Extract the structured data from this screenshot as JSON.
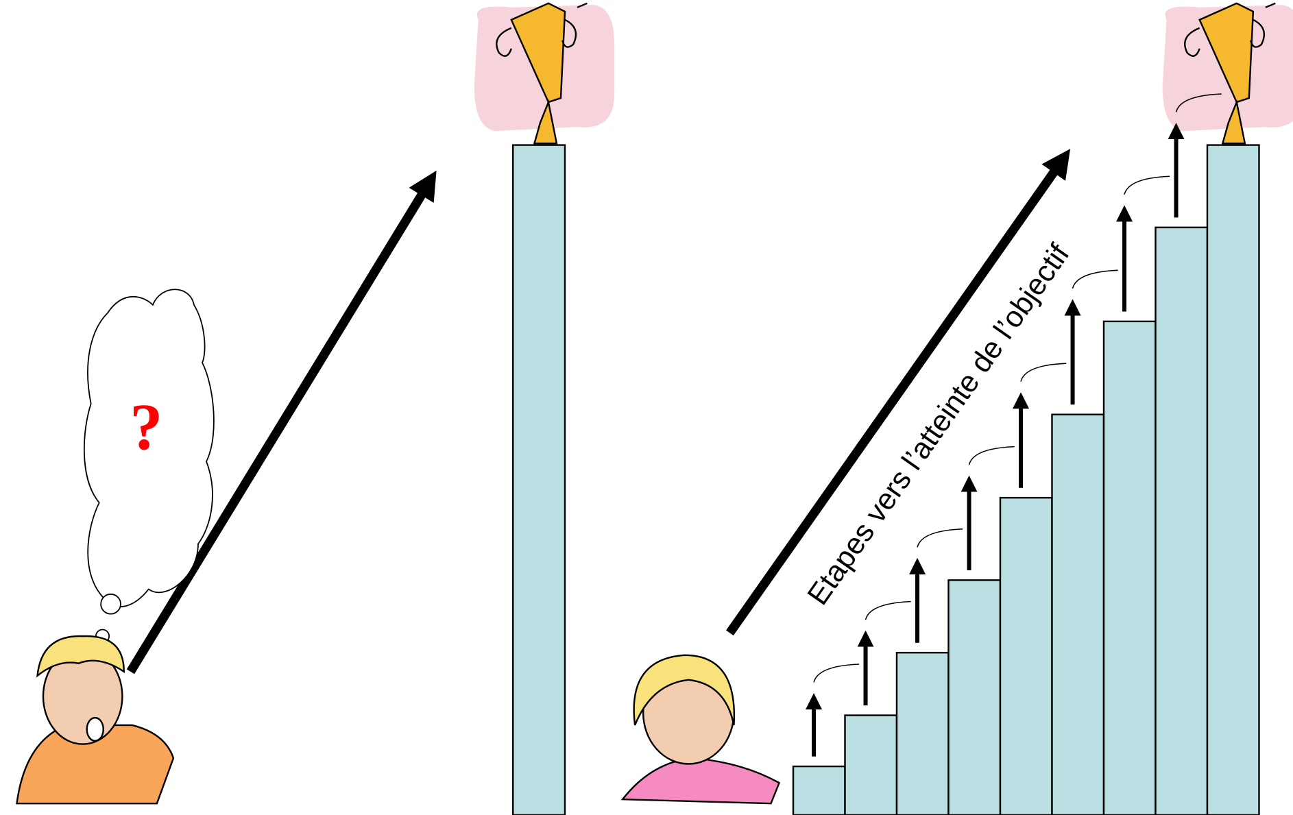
{
  "left_panel": {
    "thought": "?"
  },
  "right_panel": {
    "label": "Etapes vers l’atteinte de l’objectif"
  }
}
